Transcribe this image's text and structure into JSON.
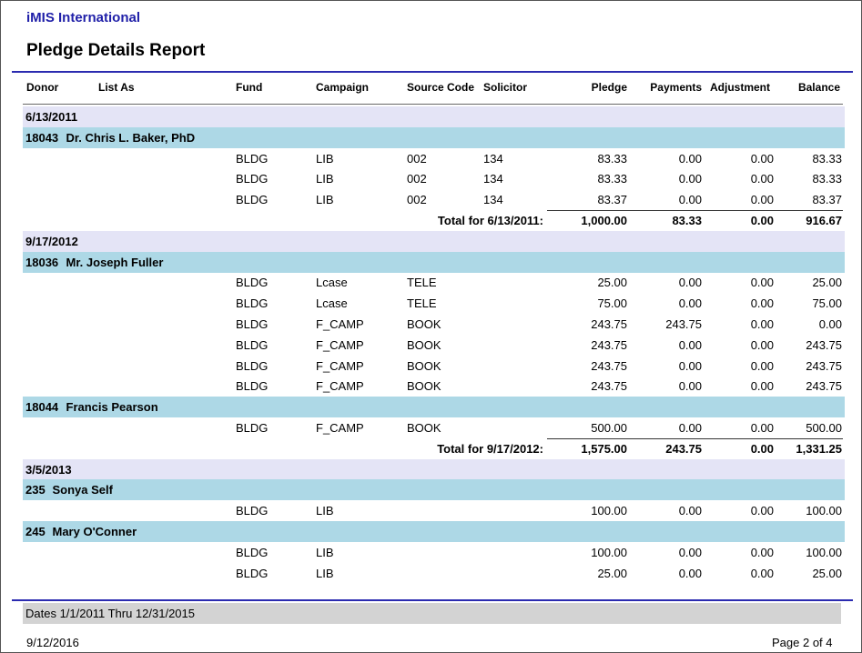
{
  "header": {
    "organization": "iMIS International",
    "title": "Pledge Details Report"
  },
  "columns": {
    "donor": "Donor",
    "list_as": "List As",
    "fund": "Fund",
    "campaign": "Campaign",
    "source_code": "Source Code",
    "solicitor": "Solicitor",
    "pledge": "Pledge",
    "payments": "Payments",
    "adjustment": "Adjustment",
    "balance": "Balance"
  },
  "groups": [
    {
      "date": "6/13/2011",
      "donors": [
        {
          "id": "18043",
          "name": "Dr. Chris L. Baker, PhD",
          "lines": [
            {
              "fund": "BLDG",
              "campaign": "LIB",
              "source_code": "002",
              "solicitor": "134",
              "pledge": "83.33",
              "payments": "0.00",
              "adjustment": "0.00",
              "balance": "83.33"
            },
            {
              "fund": "BLDG",
              "campaign": "LIB",
              "source_code": "002",
              "solicitor": "134",
              "pledge": "83.33",
              "payments": "0.00",
              "adjustment": "0.00",
              "balance": "83.33"
            },
            {
              "fund": "BLDG",
              "campaign": "LIB",
              "source_code": "002",
              "solicitor": "134",
              "pledge": "83.37",
              "payments": "0.00",
              "adjustment": "0.00",
              "balance": "83.37"
            }
          ]
        }
      ],
      "total": {
        "label": "Total for 6/13/2011:",
        "pledge": "1,000.00",
        "payments": "83.33",
        "adjustment": "0.00",
        "balance": "916.67"
      }
    },
    {
      "date": "9/17/2012",
      "donors": [
        {
          "id": "18036",
          "name": "Mr. Joseph Fuller",
          "lines": [
            {
              "fund": "BLDG",
              "campaign": "Lcase",
              "source_code": "TELE",
              "solicitor": "",
              "pledge": "25.00",
              "payments": "0.00",
              "adjustment": "0.00",
              "balance": "25.00"
            },
            {
              "fund": "BLDG",
              "campaign": "Lcase",
              "source_code": "TELE",
              "solicitor": "",
              "pledge": "75.00",
              "payments": "0.00",
              "adjustment": "0.00",
              "balance": "75.00"
            },
            {
              "fund": "BLDG",
              "campaign": "F_CAMP",
              "source_code": "BOOK",
              "solicitor": "",
              "pledge": "243.75",
              "payments": "243.75",
              "adjustment": "0.00",
              "balance": "0.00"
            },
            {
              "fund": "BLDG",
              "campaign": "F_CAMP",
              "source_code": "BOOK",
              "solicitor": "",
              "pledge": "243.75",
              "payments": "0.00",
              "adjustment": "0.00",
              "balance": "243.75"
            },
            {
              "fund": "BLDG",
              "campaign": "F_CAMP",
              "source_code": "BOOK",
              "solicitor": "",
              "pledge": "243.75",
              "payments": "0.00",
              "adjustment": "0.00",
              "balance": "243.75"
            },
            {
              "fund": "BLDG",
              "campaign": "F_CAMP",
              "source_code": "BOOK",
              "solicitor": "",
              "pledge": "243.75",
              "payments": "0.00",
              "adjustment": "0.00",
              "balance": "243.75"
            }
          ]
        },
        {
          "id": "18044",
          "name": "Francis Pearson",
          "lines": [
            {
              "fund": "BLDG",
              "campaign": "F_CAMP",
              "source_code": "BOOK",
              "solicitor": "",
              "pledge": "500.00",
              "payments": "0.00",
              "adjustment": "0.00",
              "balance": "500.00"
            }
          ]
        }
      ],
      "total": {
        "label": "Total for 9/17/2012:",
        "pledge": "1,575.00",
        "payments": "243.75",
        "adjustment": "0.00",
        "balance": "1,331.25"
      }
    },
    {
      "date": "3/5/2013",
      "donors": [
        {
          "id": "235",
          "name": "Sonya Self",
          "lines": [
            {
              "fund": "BLDG",
              "campaign": "LIB",
              "source_code": "",
              "solicitor": "",
              "pledge": "100.00",
              "payments": "0.00",
              "adjustment": "0.00",
              "balance": "100.00"
            }
          ]
        },
        {
          "id": "245",
          "name": "Mary O'Conner",
          "lines": [
            {
              "fund": "BLDG",
              "campaign": "LIB",
              "source_code": "",
              "solicitor": "",
              "pledge": "100.00",
              "payments": "0.00",
              "adjustment": "0.00",
              "balance": "100.00"
            },
            {
              "fund": "BLDG",
              "campaign": "LIB",
              "source_code": "",
              "solicitor": "",
              "pledge": "25.00",
              "payments": "0.00",
              "adjustment": "0.00",
              "balance": "25.00"
            }
          ]
        }
      ],
      "total": null
    }
  ],
  "footer": {
    "date_range": "Dates 1/1/2011 Thru 12/31/2015",
    "printed_date": "9/12/2016",
    "page_label": "Page 2 of  4"
  },
  "colors": {
    "org_title": "#1f1fa8",
    "rule": "#2b2bb0",
    "date_band": "#e4e4f6",
    "donor_band": "#add8e6",
    "footer_band": "#d3d3d3"
  }
}
